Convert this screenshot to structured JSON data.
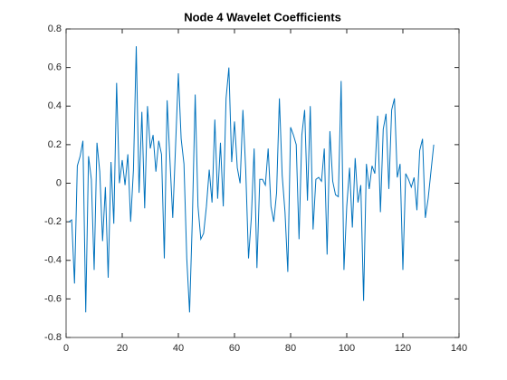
{
  "chart_data": {
    "type": "line",
    "title": "Node 4 Wavelet Coefficients",
    "color": "#0072bd",
    "x": [
      1,
      2,
      3,
      4,
      5,
      6,
      7,
      8,
      9,
      10,
      11,
      12,
      13,
      14,
      15,
      16,
      17,
      18,
      19,
      20,
      21,
      22,
      23,
      24,
      25,
      26,
      27,
      28,
      29,
      30,
      31,
      32,
      33,
      34,
      35,
      36,
      37,
      38,
      39,
      40,
      41,
      42,
      43,
      44,
      45,
      46,
      47,
      48,
      49,
      50,
      51,
      52,
      53,
      54,
      55,
      56,
      57,
      58,
      59,
      60,
      61,
      62,
      63,
      64,
      65,
      66,
      67,
      68,
      69,
      70,
      71,
      72,
      73,
      74,
      75,
      76,
      77,
      78,
      79,
      80,
      81,
      82,
      83,
      84,
      85,
      86,
      87,
      88,
      89,
      90,
      91,
      92,
      93,
      94,
      95,
      96,
      97,
      98,
      99,
      100,
      101,
      102,
      103,
      104,
      105,
      106,
      107,
      108,
      109,
      110,
      111,
      112,
      113,
      114,
      115,
      116,
      117,
      118,
      119,
      120,
      121,
      122,
      123,
      124,
      125,
      126,
      127,
      128,
      129,
      130,
      131
    ],
    "values": [
      -0.2,
      -0.19,
      -0.52,
      0.09,
      0.14,
      0.22,
      -0.67,
      0.14,
      0.02,
      -0.45,
      0.21,
      0.06,
      -0.3,
      -0.02,
      -0.49,
      0.11,
      -0.21,
      0.52,
      0.0,
      0.12,
      -0.01,
      0.15,
      -0.2,
      0.07,
      0.71,
      -0.05,
      0.37,
      -0.13,
      0.4,
      0.18,
      0.25,
      0.06,
      0.22,
      0.15,
      -0.39,
      0.43,
      0.12,
      -0.18,
      0.19,
      0.57,
      0.23,
      0.1,
      -0.39,
      -0.67,
      -0.18,
      0.46,
      -0.12,
      -0.29,
      -0.26,
      -0.12,
      0.07,
      -0.1,
      0.33,
      -0.08,
      0.21,
      -0.12,
      0.44,
      0.6,
      0.11,
      0.32,
      0.08,
      0.0,
      0.38,
      0.07,
      -0.39,
      -0.18,
      0.18,
      -0.44,
      0.02,
      0.02,
      -0.01,
      0.18,
      -0.12,
      -0.2,
      -0.05,
      0.44,
      0.04,
      -0.15,
      -0.46,
      0.29,
      0.25,
      0.2,
      -0.29,
      0.25,
      0.38,
      -0.09,
      0.4,
      -0.24,
      0.02,
      0.03,
      0.01,
      0.18,
      -0.37,
      0.27,
      0.01,
      -0.06,
      -0.07,
      0.53,
      -0.45,
      -0.12,
      0.08,
      -0.23,
      0.13,
      -0.1,
      -0.01,
      -0.61,
      0.1,
      -0.03,
      0.09,
      0.05,
      0.35,
      -0.15,
      0.28,
      0.36,
      -0.03,
      0.38,
      0.44,
      0.03,
      0.1,
      -0.45,
      0.05,
      0.02,
      -0.02,
      0.03,
      -0.14,
      0.17,
      0.23,
      -0.18,
      -0.08,
      0.06,
      0.2
    ],
    "xlim": [
      0,
      140
    ],
    "xticks": [
      0,
      20,
      40,
      60,
      80,
      100,
      120,
      140
    ],
    "ylim": [
      -0.8,
      0.8
    ],
    "yticks": [
      -0.8,
      -0.6,
      -0.4,
      -0.2,
      0,
      0.2,
      0.4,
      0.6,
      0.8
    ]
  }
}
